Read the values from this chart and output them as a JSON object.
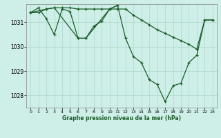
{
  "bg_color": "#ceeee8",
  "grid_color": "#aed8cc",
  "line_color": "#1a5c28",
  "xlabel": "Graphe pression niveau de la mer (hPa)",
  "yticks": [
    1028,
    1029,
    1030,
    1031
  ],
  "xticks": [
    0,
    1,
    2,
    3,
    4,
    5,
    6,
    7,
    8,
    9,
    10,
    11,
    12,
    13,
    14,
    15,
    16,
    17,
    18,
    19,
    20,
    21,
    22,
    23
  ],
  "ylim": [
    1027.5,
    1031.75
  ],
  "xlim": [
    -0.5,
    23.5
  ],
  "series1": [
    1031.4,
    1031.4,
    1031.55,
    1031.6,
    1031.6,
    1031.6,
    1031.55,
    1031.55,
    1031.55,
    1031.55,
    1031.55,
    1031.55,
    1031.55,
    1031.3,
    1031.1,
    1030.9,
    1030.7,
    1030.55,
    1030.4,
    1030.25,
    1030.1,
    1029.9,
    1031.1,
    1031.1
  ],
  "series2": [
    1031.4,
    1031.6,
    1031.15,
    1030.5,
    1031.55,
    1031.45,
    1030.35,
    1030.35,
    1030.85,
    1031.05,
    1031.55,
    1031.7,
    1030.35,
    1029.6,
    1029.35,
    1028.65,
    1028.45,
    1027.75,
    1028.4,
    1028.5,
    1029.35,
    1029.65,
    1031.1,
    1031.1
  ],
  "series3_x": [
    0,
    2,
    3,
    6,
    7,
    10,
    11
  ],
  "series3_y": [
    1031.4,
    1031.55,
    1031.6,
    1030.35,
    1030.35,
    1031.55,
    1031.7
  ]
}
